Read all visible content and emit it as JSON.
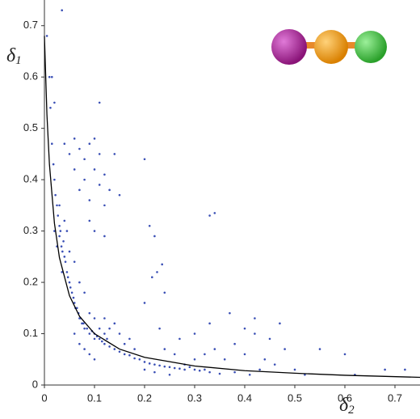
{
  "chart_data": {
    "type": "scatter",
    "xlabel": {
      "symbol": "δ",
      "subscript": "2"
    },
    "ylabel": {
      "symbol": "δ",
      "subscript": "1"
    },
    "xlim": [
      0,
      0.75
    ],
    "ylim": [
      0,
      0.75
    ],
    "xticks": [
      0,
      0.1,
      0.2,
      0.3,
      0.4,
      0.5,
      0.6,
      0.7
    ],
    "yticks": [
      0,
      0.1,
      0.2,
      0.3,
      0.4,
      0.5,
      0.6,
      0.7
    ],
    "grid": false,
    "series": [
      {
        "type": "scatter",
        "color": "#3a4fb5",
        "x": [
          0.005,
          0.01,
          0.012,
          0.015,
          0.018,
          0.02,
          0.022,
          0.025,
          0.027,
          0.03,
          0.03,
          0.032,
          0.034,
          0.036,
          0.038,
          0.04,
          0.042,
          0.045,
          0.047,
          0.05,
          0.052,
          0.055,
          0.058,
          0.06,
          0.062,
          0.065,
          0.068,
          0.07,
          0.072,
          0.075,
          0.078,
          0.08,
          0.085,
          0.09,
          0.095,
          0.1,
          0.1,
          0.105,
          0.11,
          0.11,
          0.115,
          0.12,
          0.12,
          0.125,
          0.13,
          0.14,
          0.15,
          0.16,
          0.17,
          0.18,
          0.19,
          0.2,
          0.21,
          0.22,
          0.23,
          0.24,
          0.25,
          0.26,
          0.27,
          0.28,
          0.29,
          0.3,
          0.31,
          0.32,
          0.33,
          0.35,
          0.03,
          0.04,
          0.045,
          0.025,
          0.02,
          0.05,
          0.035,
          0.06,
          0.07,
          0.08,
          0.06,
          0.07,
          0.08,
          0.09,
          0.1,
          0.12,
          0.13,
          0.15,
          0.14,
          0.16,
          0.09,
          0.1,
          0.06,
          0.07,
          0.08,
          0.09,
          0.1,
          0.11,
          0.12,
          0.13,
          0.08,
          0.09,
          0.1,
          0.11,
          0.12,
          0.14,
          0.15,
          0.07,
          0.06,
          0.1,
          0.12,
          0.09,
          0.05,
          0.04,
          0.035,
          0.015,
          0.02,
          0.11,
          0.2,
          0.21,
          0.22,
          0.235,
          0.33,
          0.34,
          0.215,
          0.225,
          0.24,
          0.2,
          0.2,
          0.22,
          0.25,
          0.28,
          0.3,
          0.32,
          0.34,
          0.36,
          0.38,
          0.4,
          0.42,
          0.44,
          0.45,
          0.46,
          0.48,
          0.3,
          0.33,
          0.37,
          0.4,
          0.42,
          0.47,
          0.5,
          0.52,
          0.55,
          0.6,
          0.62,
          0.68,
          0.72,
          0.38,
          0.41,
          0.43,
          0.26,
          0.24,
          0.27,
          0.23,
          0.18,
          0.17
        ],
        "values": [
          0.68,
          0.6,
          0.54,
          0.47,
          0.43,
          0.4,
          0.37,
          0.35,
          0.33,
          0.31,
          0.29,
          0.3,
          0.27,
          0.26,
          0.28,
          0.25,
          0.24,
          0.22,
          0.21,
          0.2,
          0.19,
          0.18,
          0.17,
          0.16,
          0.15,
          0.15,
          0.14,
          0.13,
          0.13,
          0.12,
          0.12,
          0.11,
          0.11,
          0.1,
          0.105,
          0.1,
          0.09,
          0.095,
          0.09,
          0.11,
          0.085,
          0.08,
          0.1,
          0.09,
          0.075,
          0.07,
          0.065,
          0.06,
          0.058,
          0.052,
          0.05,
          0.045,
          0.042,
          0.04,
          0.038,
          0.036,
          0.035,
          0.033,
          0.032,
          0.03,
          0.035,
          0.03,
          0.028,
          0.03,
          0.025,
          0.022,
          0.35,
          0.32,
          0.3,
          0.27,
          0.3,
          0.26,
          0.22,
          0.24,
          0.2,
          0.18,
          0.1,
          0.08,
          0.07,
          0.06,
          0.05,
          0.13,
          0.11,
          0.1,
          0.12,
          0.08,
          0.14,
          0.13,
          0.48,
          0.46,
          0.44,
          0.47,
          0.48,
          0.45,
          0.41,
          0.38,
          0.4,
          0.36,
          0.42,
          0.39,
          0.35,
          0.45,
          0.37,
          0.38,
          0.42,
          0.3,
          0.29,
          0.32,
          0.45,
          0.47,
          0.73,
          0.6,
          0.55,
          0.55,
          0.44,
          0.31,
          0.29,
          0.235,
          0.33,
          0.335,
          0.21,
          0.22,
          0.18,
          0.16,
          0.03,
          0.025,
          0.02,
          0.04,
          0.05,
          0.06,
          0.07,
          0.05,
          0.08,
          0.06,
          0.1,
          0.05,
          0.09,
          0.04,
          0.07,
          0.1,
          0.12,
          0.14,
          0.11,
          0.13,
          0.12,
          0.03,
          0.02,
          0.07,
          0.06,
          0.02,
          0.03,
          0.03,
          0.025,
          0.02,
          0.03,
          0.06,
          0.07,
          0.09,
          0.11,
          0.07,
          0.09
        ]
      },
      {
        "type": "line",
        "color": "#000000",
        "x": [
          0,
          0.005,
          0.01,
          0.02,
          0.03,
          0.05,
          0.07,
          0.1,
          0.15,
          0.2,
          0.3,
          0.4,
          0.5,
          0.6,
          0.75
        ],
        "values": [
          0.68,
          0.527,
          0.43,
          0.315,
          0.248,
          0.174,
          0.134,
          0.1,
          0.07,
          0.054,
          0.037,
          0.028,
          0.023,
          0.019,
          0.015
        ]
      }
    ]
  }
}
